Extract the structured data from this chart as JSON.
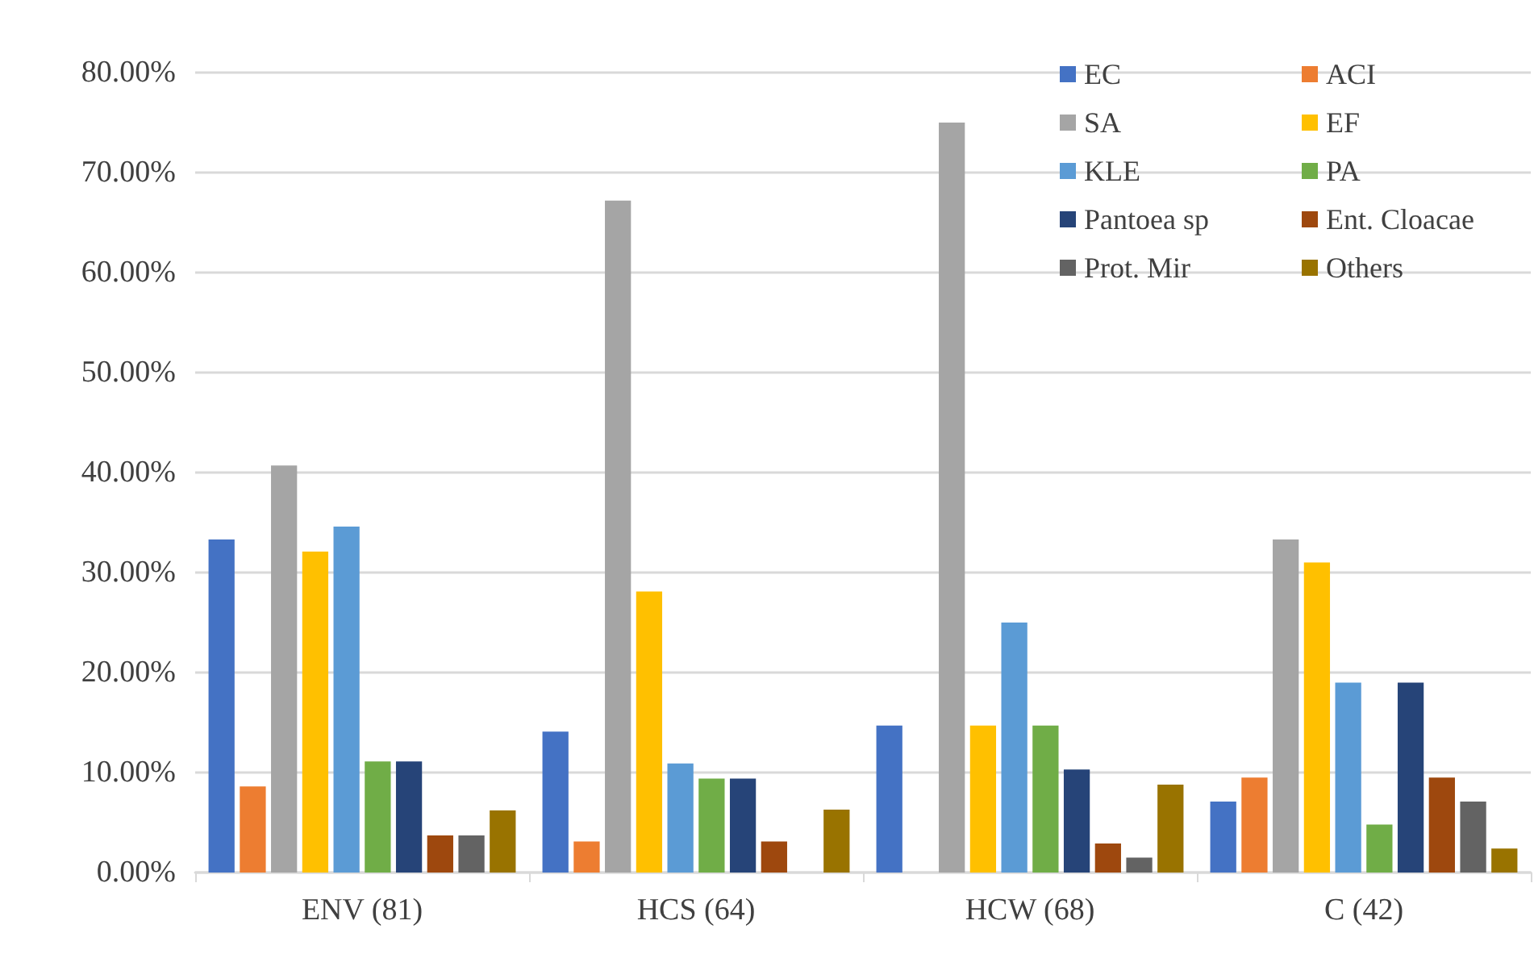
{
  "chart_data": {
    "type": "bar",
    "categories": [
      "ENV (81)",
      "HCS (64)",
      "HCW (68)",
      "C (42)"
    ],
    "series": [
      {
        "name": "EC",
        "color": "#4472c4",
        "values": [
          33.3,
          14.1,
          14.7,
          7.1
        ]
      },
      {
        "name": "ACI",
        "color": "#ed7d31",
        "values": [
          8.6,
          3.1,
          0,
          9.5
        ]
      },
      {
        "name": "SA",
        "color": "#a5a5a5",
        "values": [
          40.7,
          67.2,
          75.0,
          33.3
        ]
      },
      {
        "name": "EF",
        "color": "#ffc000",
        "values": [
          32.1,
          28.1,
          14.7,
          31.0
        ]
      },
      {
        "name": "KLE",
        "color": "#5b9bd5",
        "values": [
          34.6,
          10.9,
          25.0,
          19.0
        ]
      },
      {
        "name": "PA",
        "color": "#70ad47",
        "values": [
          11.1,
          9.4,
          14.7,
          4.8
        ]
      },
      {
        "name": "Pantoea sp",
        "color": "#264478",
        "values": [
          11.1,
          9.4,
          10.3,
          19.0
        ]
      },
      {
        "name": "Ent. Cloacae",
        "color": "#9e480e",
        "values": [
          3.7,
          3.1,
          2.9,
          9.5
        ]
      },
      {
        "name": "Prot. Mir",
        "color": "#636363",
        "values": [
          3.7,
          0,
          1.5,
          7.1
        ]
      },
      {
        "name": "Others",
        "color": "#997300",
        "values": [
          6.2,
          6.3,
          8.8,
          2.4
        ]
      }
    ],
    "ylim": [
      0,
      80
    ],
    "yticks": [
      {
        "value": 0,
        "label": "0.00%"
      },
      {
        "value": 10,
        "label": "10.00%"
      },
      {
        "value": 20,
        "label": "20.00%"
      },
      {
        "value": 30,
        "label": "30.00%"
      },
      {
        "value": 40,
        "label": "40.00%"
      },
      {
        "value": 50,
        "label": "50.00%"
      },
      {
        "value": 60,
        "label": "60.00%"
      },
      {
        "value": 70,
        "label": "70.00%"
      },
      {
        "value": 80,
        "label": "80.00%"
      }
    ],
    "grid": "y",
    "legend": "top right"
  }
}
